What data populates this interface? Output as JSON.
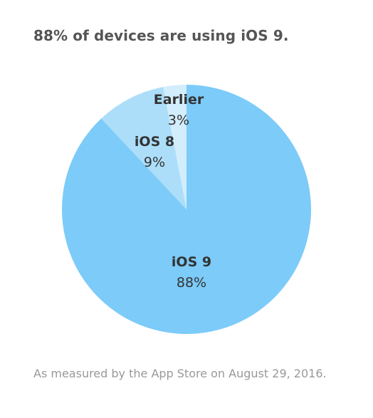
{
  "headline": "88% of devices are using iOS 9.",
  "footnote": "As measured by the App Store on August 29, 2016.",
  "colors": {
    "ios9": "#7ccbf9",
    "ios8": "#acdef9",
    "earlier": "#d2edfc",
    "label": "#333333"
  },
  "chart_data": {
    "type": "pie",
    "title": "88% of devices are using iOS 9.",
    "slices": [
      {
        "label": "iOS 9",
        "value": 88,
        "display": "88%",
        "color": "#7ccbf9"
      },
      {
        "label": "iOS 8",
        "value": 9,
        "display": "9%",
        "color": "#acdef9"
      },
      {
        "label": "Earlier",
        "value": 3,
        "display": "3%",
        "color": "#d2edfc"
      }
    ]
  }
}
